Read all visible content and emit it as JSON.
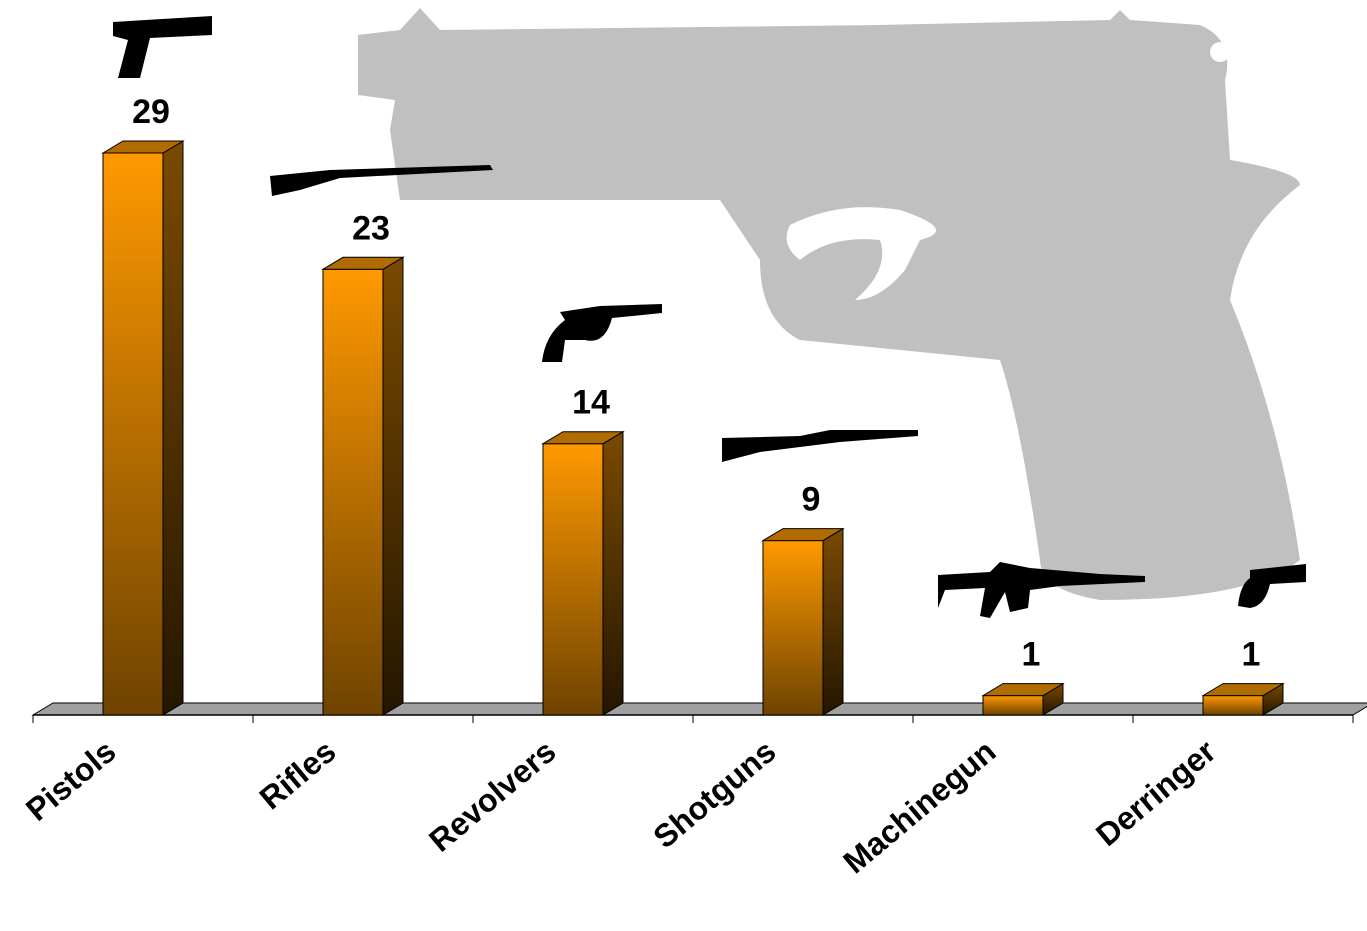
{
  "chart_data": {
    "type": "bar",
    "categories": [
      "Pistols",
      "Rifles",
      "Revolvers",
      "Shotguns",
      "Machinegun",
      "Derringer"
    ],
    "values": [
      29,
      23,
      14,
      9,
      1,
      1
    ],
    "color": "#ff9900"
  }
}
